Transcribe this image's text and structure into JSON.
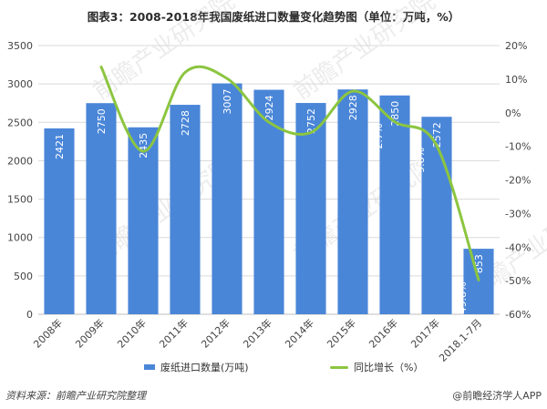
{
  "title": "图表3：2008-2018年我国废纸进口数量变化趋势图（单位：万吨，%）",
  "source": "资料来源：前瞻产业研究院整理",
  "brand": "@前瞻经济学人APP",
  "watermark": "前瞻产业研究院",
  "colors": {
    "bar": "#4a86d8",
    "line": "#8cc540",
    "grid": "#d9d9d9"
  },
  "chart_data": {
    "type": "bar",
    "title": "图表3：2008-2018年我国废纸进口数量变化趋势图（单位：万吨，%）",
    "categories": [
      "2008年",
      "2009年",
      "2010年",
      "2011年",
      "2012年",
      "2013年",
      "2014年",
      "2015年",
      "2016年",
      "2017年",
      "2018.1-7月"
    ],
    "series": [
      {
        "name": "废纸进口数量(万吨)",
        "type": "bar",
        "axis": "left",
        "values": [
          2421,
          2750,
          2435,
          2728,
          3007,
          2924,
          2752,
          2928,
          2850,
          2572,
          853
        ],
        "labels": [
          "2421",
          "2750",
          "2435",
          "2728",
          "3007",
          "2924",
          "2752",
          "2928",
          "2850",
          "2572",
          "853"
        ]
      },
      {
        "name": "同比增长（%）",
        "type": "line",
        "axis": "right",
        "values": [
          null,
          13.6,
          -11.5,
          12.0,
          10.2,
          -2.8,
          -5.9,
          6.4,
          -2.7,
          -9.8,
          -49.8
        ],
        "labels": [
          null,
          null,
          null,
          null,
          null,
          null,
          null,
          null,
          "-2.7%",
          "-9.8%",
          "-49.8%"
        ]
      }
    ],
    "y_left": {
      "range": [
        0,
        3500
      ],
      "ticks": [
        "0",
        "500",
        "1000",
        "1500",
        "2000",
        "2500",
        "3000",
        "3500"
      ]
    },
    "y_right": {
      "range": [
        -60,
        20
      ],
      "ticks": [
        "-60%",
        "-50%",
        "-40%",
        "-30%",
        "-20%",
        "-10%",
        "0%",
        "10%",
        "20%"
      ]
    },
    "grid": true,
    "legend": "bottom"
  }
}
